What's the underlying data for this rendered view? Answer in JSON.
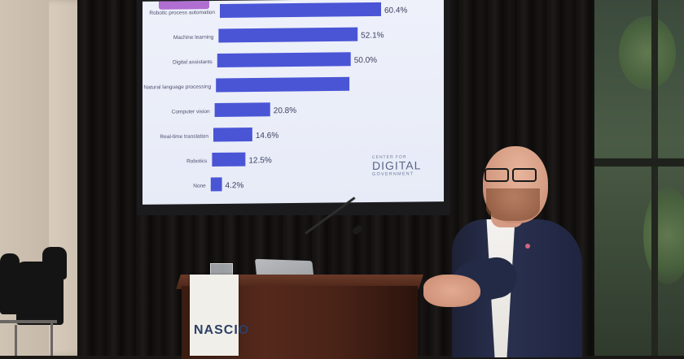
{
  "slide": {
    "bars": [
      {
        "label": "Robotic process automation",
        "value": 60.4,
        "value_text": "60.4%"
      },
      {
        "label": "Machine learning",
        "value": 52.1,
        "value_text": "52.1%"
      },
      {
        "label": "Digital assistants",
        "value": 50.0,
        "value_text": "50.0%"
      },
      {
        "label": "Natural language processing",
        "value": 50.0,
        "value_text": ""
      },
      {
        "label": "Computer vision",
        "value": 20.8,
        "value_text": "20.8%"
      },
      {
        "label": "Real-time translation",
        "value": 14.6,
        "value_text": "14.6%"
      },
      {
        "label": "Robotics",
        "value": 12.5,
        "value_text": "12.5%"
      },
      {
        "label": "None",
        "value": 4.2,
        "value_text": "4.2%"
      }
    ],
    "bar_color": "#4a55d6",
    "logo": {
      "line1": "CENTER FOR",
      "line2": "DIGITAL",
      "line3": "GOVERNMENT"
    }
  },
  "podium": {
    "sign_text": "NASCIO"
  },
  "colors": {
    "screen_bg": "#eceff9",
    "jacket": "#262c48",
    "podium_wood": "#4a2318"
  }
}
